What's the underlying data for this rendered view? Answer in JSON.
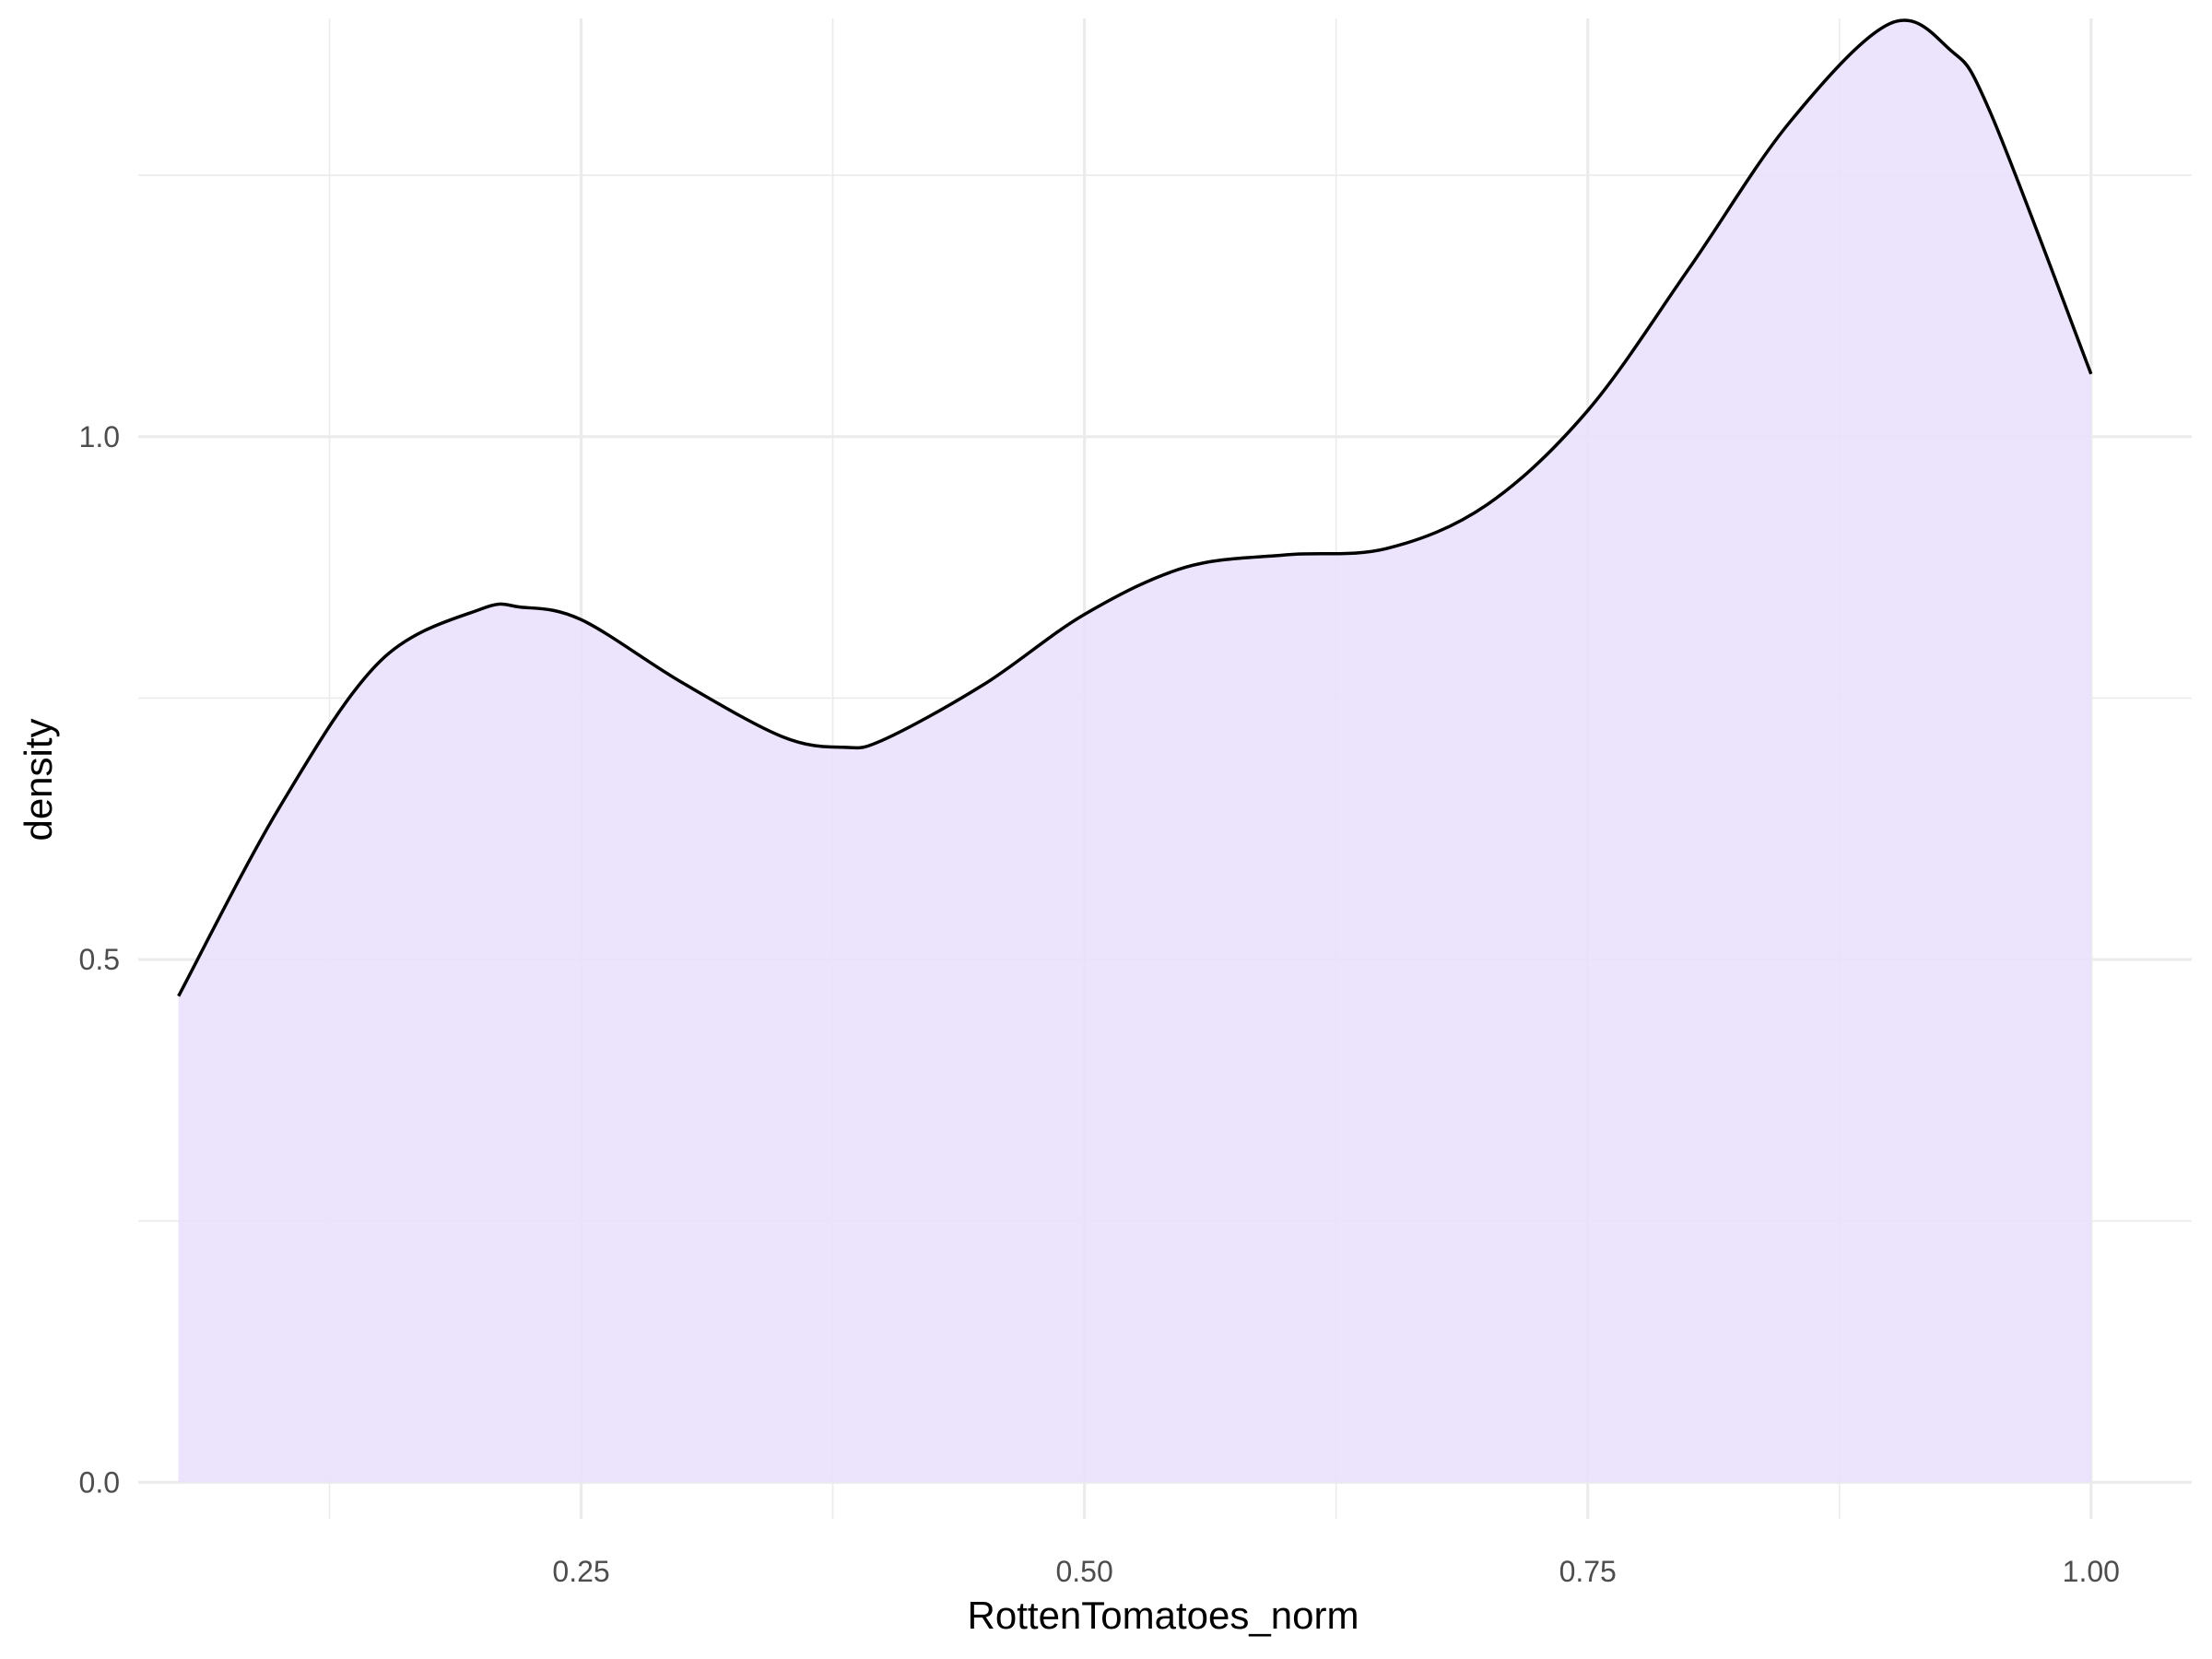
{
  "chart_data": {
    "type": "area",
    "xlabel": "RottenTomatoes_norm",
    "ylabel": "density",
    "xlim": [
      0.03,
      1.05
    ],
    "ylim": [
      -0.035,
      1.4
    ],
    "x_ticks": [
      0.25,
      0.5,
      0.75,
      1.0
    ],
    "x_tick_labels": [
      "0.25",
      "0.50",
      "0.75",
      "1.00"
    ],
    "y_ticks": [
      0.0,
      0.5,
      1.0
    ],
    "y_tick_labels": [
      "0.0",
      "0.5",
      "1.0"
    ],
    "grid": true,
    "fill_color": "#e9e1fc",
    "line_color": "#000000",
    "series": [
      {
        "x": [
          0.05,
          0.1,
          0.15,
          0.2,
          0.22,
          0.25,
          0.3,
          0.35,
          0.38,
          0.4,
          0.45,
          0.5,
          0.55,
          0.6,
          0.65,
          0.7,
          0.75,
          0.8,
          0.85,
          0.9,
          0.93,
          0.95,
          1.0
        ],
        "y": [
          0.465,
          0.645,
          0.785,
          0.835,
          0.837,
          0.825,
          0.765,
          0.713,
          0.703,
          0.71,
          0.763,
          0.83,
          0.875,
          0.887,
          0.893,
          0.935,
          1.025,
          1.16,
          1.3,
          1.395,
          1.37,
          1.31,
          1.06
        ]
      }
    ]
  }
}
